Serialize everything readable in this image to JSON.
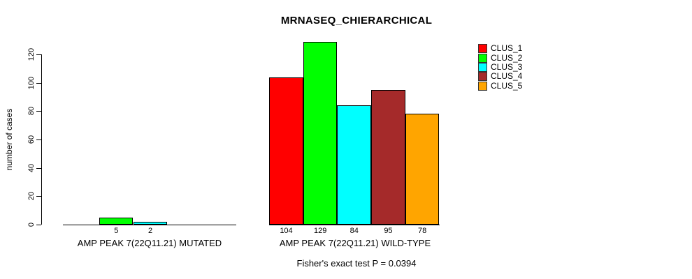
{
  "title": "MRNASEQ_CHIERARCHICAL",
  "y_axis": {
    "label": "number of cases",
    "ticks": [
      0,
      20,
      40,
      60,
      80,
      100,
      120
    ]
  },
  "legend": [
    {
      "label": "CLUS_1",
      "color": "#FF0000"
    },
    {
      "label": "CLUS_2",
      "color": "#00FF00"
    },
    {
      "label": "CLUS_3",
      "color": "#00FFFF"
    },
    {
      "label": "CLUS_4",
      "color": "#A52A2A"
    },
    {
      "label": "CLUS_5",
      "color": "#FFA500"
    }
  ],
  "footer": "Fisher's exact test P = 0.0394",
  "chart_data": {
    "type": "bar",
    "title": "MRNASEQ_CHIERARCHICAL",
    "ylabel": "number of cases",
    "ylim": [
      0,
      130
    ],
    "yticks": [
      0,
      20,
      40,
      60,
      80,
      100,
      120
    ],
    "grid": false,
    "legend_position": "top-right",
    "legend_entries": [
      "CLUS_1",
      "CLUS_2",
      "CLUS_3",
      "CLUS_4",
      "CLUS_5"
    ],
    "categories": [
      "AMP PEAK 7(22Q11.21) MUTATED",
      "AMP PEAK 7(22Q11.21) WILD-TYPE"
    ],
    "groups": [
      {
        "label": "AMP PEAK 7(22Q11.21) MUTATED",
        "bars": [
          {
            "cluster": "CLUS_2",
            "value": 5,
            "slot": 1
          },
          {
            "cluster": "CLUS_3",
            "value": 2,
            "slot": 2
          }
        ]
      },
      {
        "label": "AMP PEAK 7(22Q11.21) WILD-TYPE",
        "bars": [
          {
            "cluster": "CLUS_1",
            "value": 104,
            "slot": 0
          },
          {
            "cluster": "CLUS_2",
            "value": 129,
            "slot": 1
          },
          {
            "cluster": "CLUS_3",
            "value": 84,
            "slot": 2
          },
          {
            "cluster": "CLUS_4",
            "value": 95,
            "slot": 3
          },
          {
            "cluster": "CLUS_5",
            "value": 78,
            "slot": 4
          }
        ]
      }
    ],
    "annotation": "Fisher's exact test P = 0.0394"
  }
}
